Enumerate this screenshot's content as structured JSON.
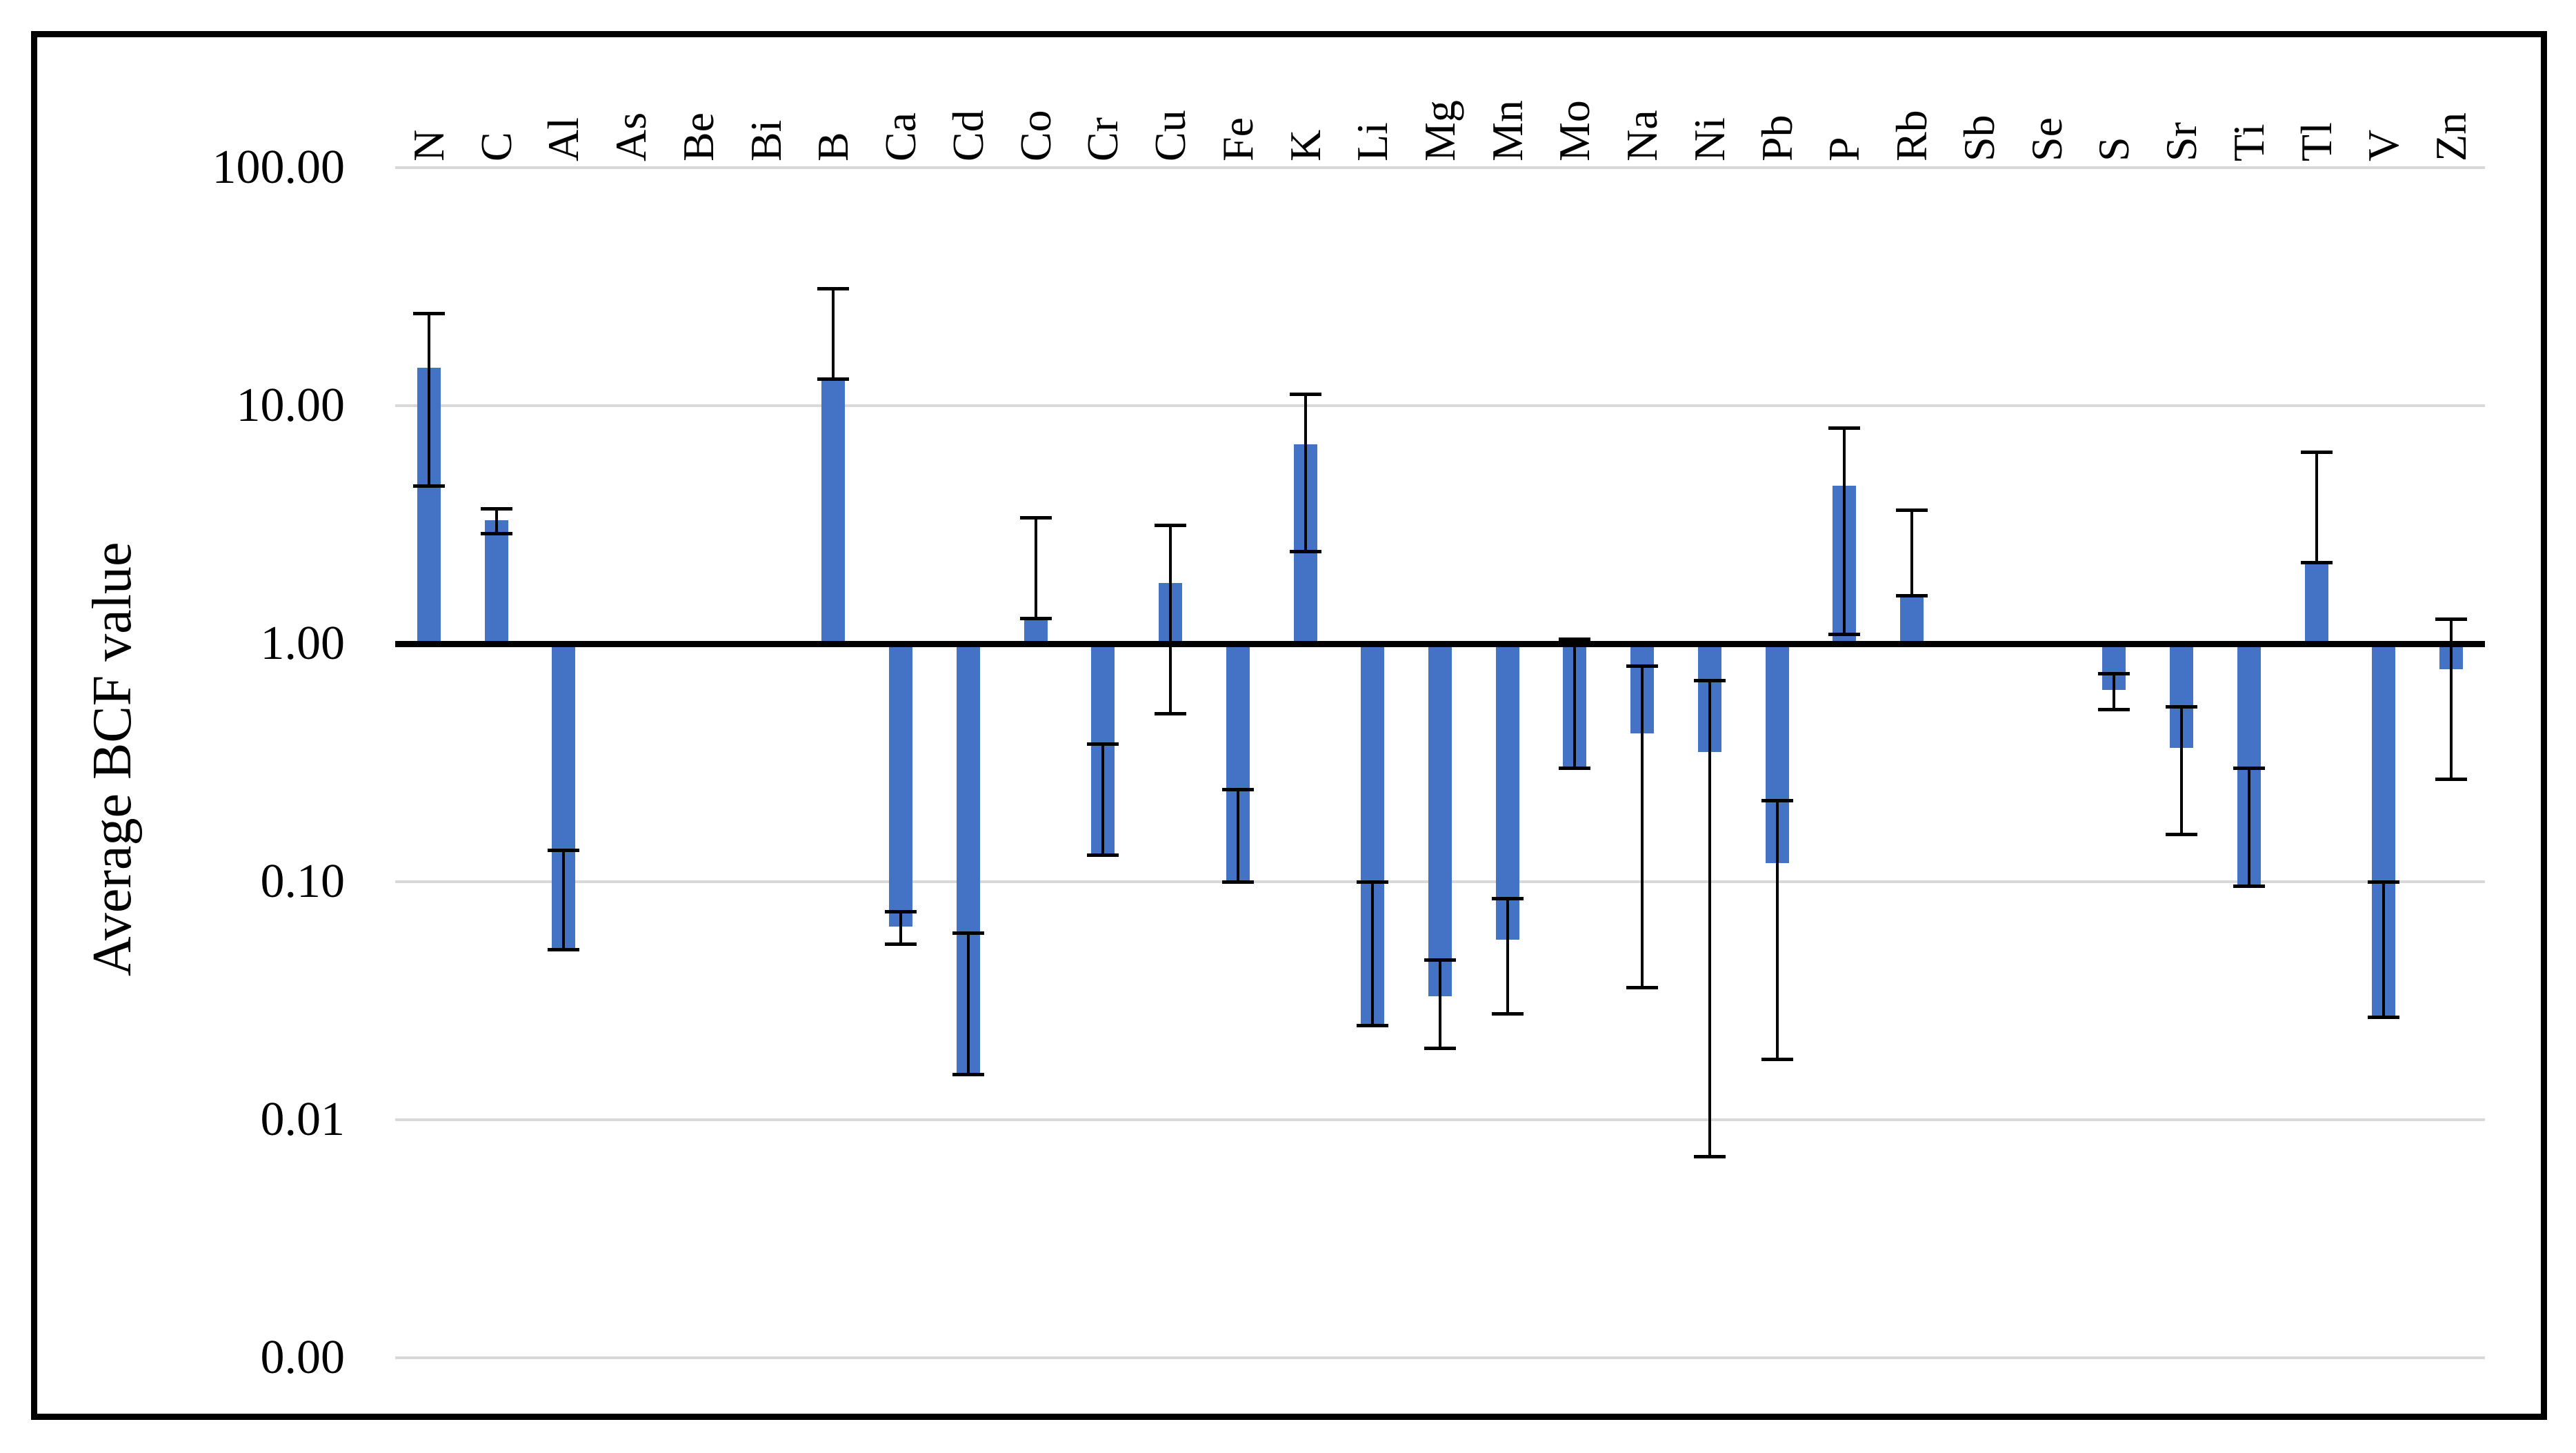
{
  "chart_data": {
    "type": "bar",
    "title": "",
    "ylabel": "Average BCF value",
    "yscale": "log10",
    "ylim": [
      0.001,
      100
    ],
    "baseline_value": 1,
    "grid": true,
    "legend": "none",
    "bar_color": "#4472C4",
    "gridline_color": "#D9D9D9",
    "axis_color": "#000000",
    "error_bar_color": "#000000",
    "yticks": [
      {
        "label": "100.00",
        "value": 100
      },
      {
        "label": "10.00",
        "value": 10
      },
      {
        "label": "1.00",
        "value": 1
      },
      {
        "label": "0.10",
        "value": 0.1
      },
      {
        "label": "0.01",
        "value": 0.01
      },
      {
        "label": "0.00",
        "value": 0.001
      }
    ],
    "categories": [
      "N",
      "C",
      "Al",
      "As",
      "Be",
      "Bi",
      "B",
      "Ca",
      "Cd",
      "Co",
      "Cr",
      "Cu",
      "Fe",
      "K",
      "Li",
      "Mg",
      "Mn",
      "Mo",
      "Na",
      "Ni",
      "Pb",
      "P",
      "Rb",
      "Sb",
      "Se",
      "S",
      "Sr",
      "Ti",
      "Tl",
      "V",
      "Zn"
    ],
    "series": [
      {
        "name": "Average BCF",
        "points": [
          {
            "category": "N",
            "value": 14.4,
            "err_lo": 4.6,
            "err_hi": 24.5
          },
          {
            "category": "C",
            "value": 3.3,
            "err_lo": 2.9,
            "err_hi": 3.7
          },
          {
            "category": "Al",
            "value": 0.052,
            "err_lo": 0.052,
            "err_hi": 0.136
          },
          {
            "category": "As",
            "value": null,
            "err_lo": null,
            "err_hi": null
          },
          {
            "category": "Be",
            "value": null,
            "err_lo": null,
            "err_hi": null
          },
          {
            "category": "Bi",
            "value": null,
            "err_lo": null,
            "err_hi": null
          },
          {
            "category": "B",
            "value": 13.0,
            "err_lo": 13.0,
            "err_hi": 31.0
          },
          {
            "category": "Ca",
            "value": 0.065,
            "err_lo": 0.055,
            "err_hi": 0.075
          },
          {
            "category": "Cd",
            "value": 0.0155,
            "err_lo": 0.0155,
            "err_hi": 0.061
          },
          {
            "category": "Co",
            "value": 1.28,
            "err_lo": 1.28,
            "err_hi": 3.4
          },
          {
            "category": "Cr",
            "value": 0.13,
            "err_lo": 0.13,
            "err_hi": 0.38
          },
          {
            "category": "Cu",
            "value": 1.8,
            "err_lo": 0.51,
            "err_hi": 3.15
          },
          {
            "category": "Fe",
            "value": 0.1,
            "err_lo": 0.1,
            "err_hi": 0.245
          },
          {
            "category": "K",
            "value": 6.9,
            "err_lo": 2.45,
            "err_hi": 11.2
          },
          {
            "category": "Li",
            "value": 0.025,
            "err_lo": 0.025,
            "err_hi": 0.1
          },
          {
            "category": "Mg",
            "value": 0.033,
            "err_lo": 0.02,
            "err_hi": 0.047
          },
          {
            "category": "Mn",
            "value": 0.057,
            "err_lo": 0.028,
            "err_hi": 0.085
          },
          {
            "category": "Mo",
            "value": 0.3,
            "err_lo": 0.3,
            "err_hi": 1.05
          },
          {
            "category": "Na",
            "value": 0.42,
            "err_lo": 0.036,
            "err_hi": 0.81
          },
          {
            "category": "Ni",
            "value": 0.35,
            "err_lo": 0.007,
            "err_hi": 0.7
          },
          {
            "category": "Pb",
            "value": 0.12,
            "err_lo": 0.018,
            "err_hi": 0.22
          },
          {
            "category": "P",
            "value": 4.6,
            "err_lo": 1.1,
            "err_hi": 8.1
          },
          {
            "category": "Rb",
            "value": 1.6,
            "err_lo": 1.6,
            "err_hi": 3.65
          },
          {
            "category": "Sb",
            "value": null,
            "err_lo": null,
            "err_hi": null
          },
          {
            "category": "Se",
            "value": null,
            "err_lo": null,
            "err_hi": null
          },
          {
            "category": "S",
            "value": 0.64,
            "err_lo": 0.53,
            "err_hi": 0.75
          },
          {
            "category": "Sr",
            "value": 0.365,
            "err_lo": 0.158,
            "err_hi": 0.545
          },
          {
            "category": "Ti",
            "value": 0.096,
            "err_lo": 0.096,
            "err_hi": 0.3
          },
          {
            "category": "Tl",
            "value": 2.2,
            "err_lo": 2.2,
            "err_hi": 6.4
          },
          {
            "category": "V",
            "value": 0.027,
            "err_lo": 0.027,
            "err_hi": 0.1
          },
          {
            "category": "Zn",
            "value": 0.78,
            "err_lo": 0.27,
            "err_hi": 1.27
          }
        ]
      }
    ]
  }
}
